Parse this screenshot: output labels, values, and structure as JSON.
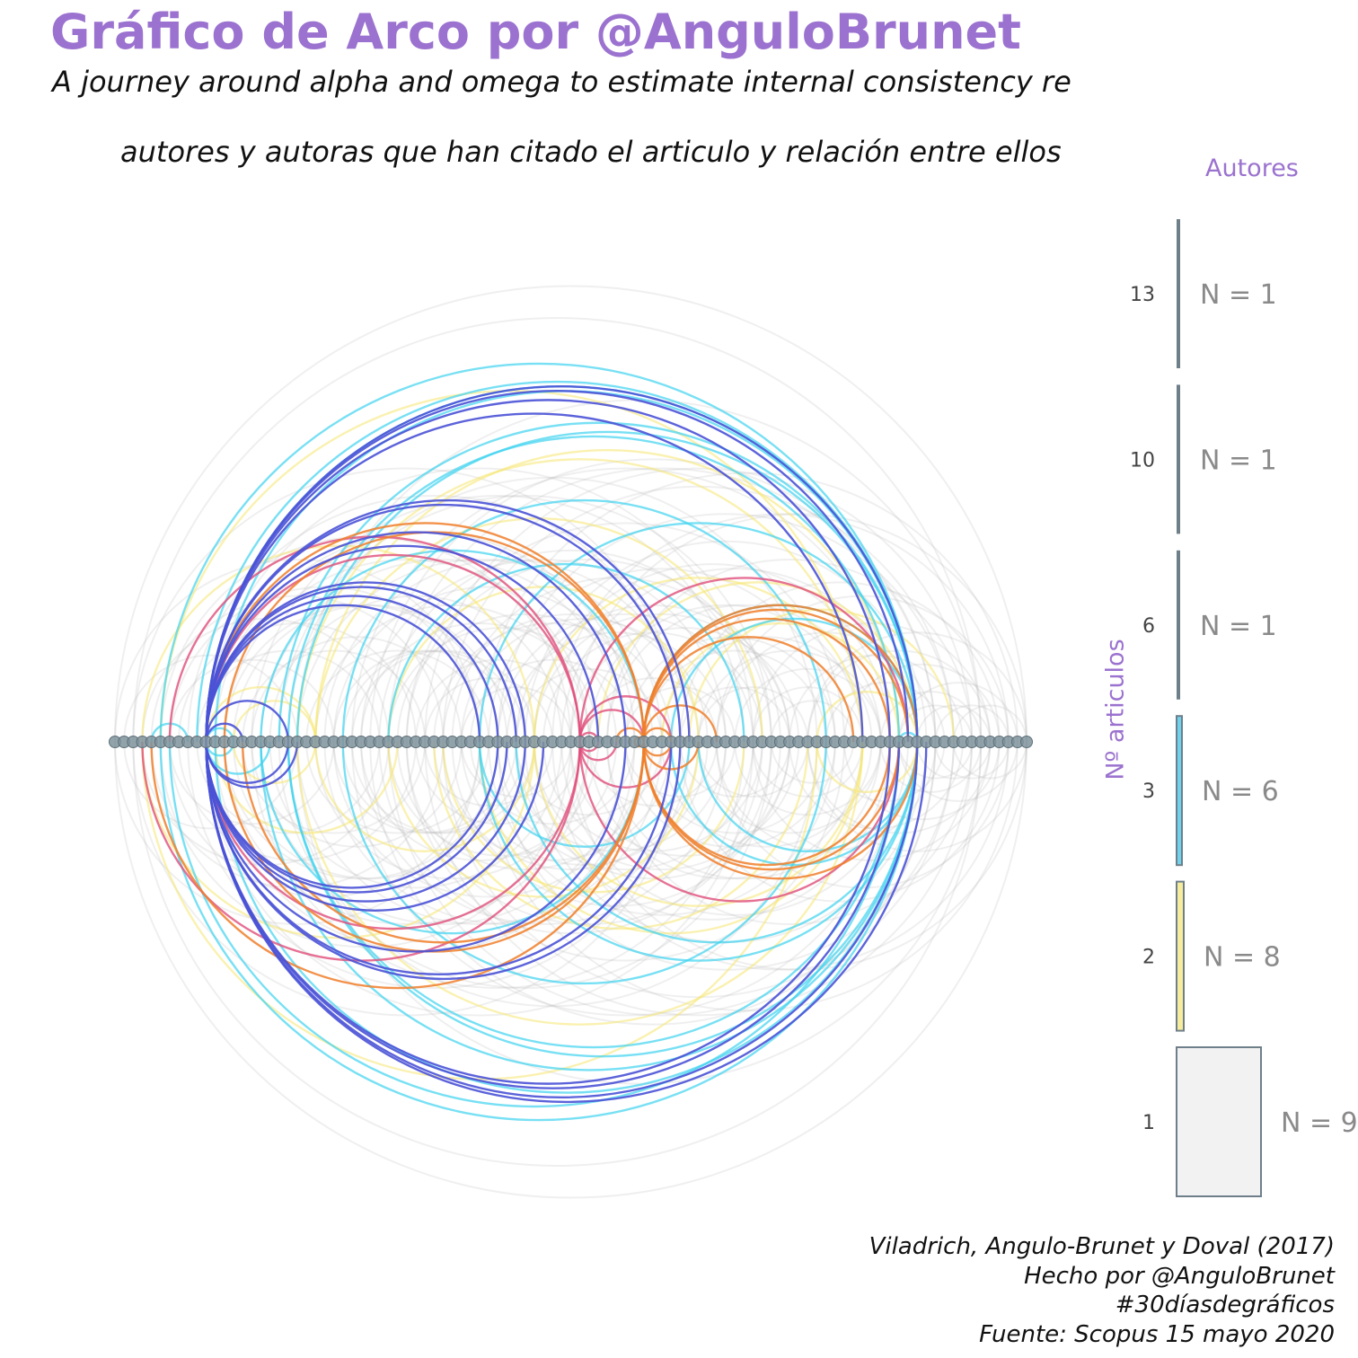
{
  "title": "Gráfico de Arco por @AnguloBrunet",
  "subtitle": "A journey around alpha and omega to estimate internal consistency re",
  "subtitle2": "autores y autoras que han citado el articulo y relación entre ellos",
  "caption": [
    "Viladrich, Angulo-Brunet y Doval (2017)",
    "Hecho por @AnguloBrunet",
    "#30díasdegráficos",
    "Fuente: Scopus 15 mayo 2020"
  ],
  "colors": {
    "title": "#9b72cf",
    "node": "#7f939c",
    "axis_bar": "#6e7f8a",
    "articles_13": "#4a52d6",
    "articles_10": "#f07f2c",
    "articles_6": "#e04d7a",
    "articles_3": "#3fd3ef",
    "articles_2": "#f5e56f",
    "articles_1": "#cfcfcf"
  },
  "chart_data": {
    "type": "arc",
    "node_count": 101,
    "legend": {
      "title": "Autores",
      "axis_title": "Nº articulos",
      "placement": "right",
      "items": [
        {
          "articles": "13",
          "label": "N = 1",
          "color": "#6e7f8a"
        },
        {
          "articles": "10",
          "label": "N = 1",
          "color": "#6e7f8a"
        },
        {
          "articles": "6",
          "label": "N = 1",
          "color": "#6e7f8a"
        },
        {
          "articles": "3",
          "label": "N = 6",
          "color": "#6fd3ee"
        },
        {
          "articles": "2",
          "label": "N = 8",
          "color": "#f7ec9c"
        },
        {
          "articles": "1",
          "label": "N = 9",
          "color": "#f2f2f2"
        }
      ]
    },
    "edge_groups": [
      {
        "articles": 13,
        "color": "#4a52d6",
        "opacity": 0.9,
        "edges": [
          [
            10,
            14
          ],
          [
            10,
            19
          ],
          [
            10,
            20
          ],
          [
            10,
            40
          ],
          [
            10,
            42
          ],
          [
            10,
            43
          ],
          [
            10,
            44
          ],
          [
            10,
            45
          ],
          [
            10,
            47
          ],
          [
            10,
            53
          ],
          [
            10,
            56
          ],
          [
            10,
            61
          ],
          [
            10,
            82
          ],
          [
            10,
            85
          ],
          [
            10,
            86
          ],
          [
            10,
            87
          ],
          [
            10,
            88
          ],
          [
            10,
            89
          ],
          [
            10,
            63
          ],
          [
            10,
            62
          ]
        ]
      },
      {
        "articles": 10,
        "color": "#f07f2c",
        "opacity": 0.85,
        "edges": [
          [
            58,
            66
          ],
          [
            58,
            61
          ],
          [
            58,
            64
          ],
          [
            58,
            81
          ],
          [
            58,
            85
          ],
          [
            58,
            86
          ],
          [
            58,
            87
          ],
          [
            58,
            88
          ],
          [
            4,
            58
          ],
          [
            10,
            58
          ],
          [
            12,
            58
          ],
          [
            14,
            58
          ],
          [
            55,
            58
          ],
          [
            57,
            58
          ]
        ]
      },
      {
        "articles": 6,
        "color": "#e04d7a",
        "opacity": 0.8,
        "edges": [
          [
            51,
            58
          ],
          [
            51,
            53
          ],
          [
            51,
            86
          ],
          [
            51,
            87
          ],
          [
            51,
            61
          ],
          [
            3,
            51
          ],
          [
            6,
            51
          ],
          [
            10,
            51
          ],
          [
            55,
            51
          ]
        ]
      },
      {
        "articles": 3,
        "color": "#3fd3ef",
        "opacity": 0.7,
        "edges": [
          [
            4,
            8
          ],
          [
            10,
            13
          ],
          [
            10,
            17
          ],
          [
            10,
            88
          ],
          [
            16,
            58
          ],
          [
            16,
            88
          ],
          [
            18,
            88
          ],
          [
            19,
            86
          ],
          [
            19,
            88
          ],
          [
            20,
            88
          ],
          [
            40,
            88
          ],
          [
            44,
            88
          ],
          [
            58,
            88
          ],
          [
            61,
            88
          ],
          [
            64,
            88
          ],
          [
            86,
            88
          ],
          [
            5,
            88
          ],
          [
            6,
            86
          ],
          [
            9,
            88
          ],
          [
            11,
            88
          ],
          [
            40,
            63
          ],
          [
            30,
            69
          ],
          [
            25,
            78
          ]
        ]
      },
      {
        "articles": 2,
        "color": "#f5e56f",
        "opacity": 0.55,
        "edges": [
          [
            10,
            22
          ],
          [
            13,
            22
          ],
          [
            22,
            46
          ],
          [
            22,
            71
          ],
          [
            46,
            82
          ],
          [
            40,
            82
          ],
          [
            5,
            82
          ],
          [
            30,
            64
          ],
          [
            36,
            69
          ],
          [
            60,
            86
          ],
          [
            77,
            88
          ],
          [
            11,
            31
          ],
          [
            22,
            86
          ],
          [
            3,
            46
          ],
          [
            3,
            77
          ],
          [
            63,
            92
          ],
          [
            20,
            82
          ],
          [
            35,
            76
          ],
          [
            53,
            88
          ]
        ]
      },
      {
        "articles": 1,
        "color": "#b5b5b5",
        "opacity": 0.22,
        "edges": [
          [
            0,
            100
          ],
          [
            2,
            95
          ],
          [
            3,
            30
          ],
          [
            6,
            40
          ],
          [
            8,
            62
          ],
          [
            12,
            52
          ],
          [
            15,
            38
          ],
          [
            18,
            72
          ],
          [
            20,
            95
          ],
          [
            24,
            58
          ],
          [
            26,
            46
          ],
          [
            27,
            67
          ],
          [
            28,
            90
          ],
          [
            30,
            55
          ],
          [
            32,
            80
          ],
          [
            34,
            48
          ],
          [
            36,
            92
          ],
          [
            38,
            65
          ],
          [
            40,
            99
          ],
          [
            42,
            70
          ],
          [
            44,
            60
          ],
          [
            46,
            85
          ],
          [
            48,
            98
          ],
          [
            50,
            75
          ],
          [
            52,
            66
          ],
          [
            54,
            94
          ],
          [
            56,
            79
          ],
          [
            60,
            83
          ],
          [
            62,
            97
          ],
          [
            64,
            76
          ],
          [
            66,
            90
          ],
          [
            68,
            84
          ],
          [
            70,
            96
          ],
          [
            72,
            81
          ],
          [
            74,
            93
          ],
          [
            76,
            100
          ],
          [
            78,
            91
          ],
          [
            80,
            97
          ],
          [
            84,
            95
          ],
          [
            86,
            99
          ],
          [
            88,
            96
          ],
          [
            90,
            98
          ],
          [
            5,
            50
          ],
          [
            7,
            33
          ],
          [
            9,
            29
          ],
          [
            11,
            57
          ],
          [
            13,
            43
          ],
          [
            15,
            69
          ],
          [
            17,
            49
          ],
          [
            19,
            77
          ],
          [
            21,
            41
          ],
          [
            23,
            63
          ],
          [
            25,
            45
          ],
          [
            27,
            53
          ],
          [
            29,
            71
          ],
          [
            31,
            59
          ],
          [
            33,
            51
          ],
          [
            35,
            61
          ],
          [
            37,
            73
          ],
          [
            39,
            57
          ],
          [
            41,
            79
          ],
          [
            43,
            67
          ],
          [
            45,
            89
          ],
          [
            47,
            71
          ],
          [
            49,
            87
          ],
          [
            1,
            20
          ],
          [
            4,
            36
          ],
          [
            14,
            34
          ],
          [
            22,
            52
          ],
          [
            38,
            50
          ],
          [
            56,
            68
          ],
          [
            62,
            74
          ],
          [
            70,
            82
          ],
          [
            86,
            94
          ],
          [
            92,
            100
          ],
          [
            0,
            40
          ],
          [
            10,
            70
          ],
          [
            20,
            60
          ],
          [
            30,
            90
          ],
          [
            50,
            100
          ],
          [
            6,
            24
          ],
          [
            16,
            56
          ],
          [
            26,
            86
          ],
          [
            36,
            64
          ],
          [
            46,
            74
          ],
          [
            66,
            98
          ],
          [
            76,
            96
          ],
          [
            2,
            62
          ],
          [
            12,
            42
          ],
          [
            32,
            72
          ],
          [
            42,
            92
          ],
          [
            52,
            82
          ],
          [
            58,
            78
          ],
          [
            64,
            84
          ],
          [
            24,
            44
          ],
          [
            34,
            94
          ],
          [
            44,
            74
          ],
          [
            54,
            84
          ]
        ]
      }
    ]
  }
}
